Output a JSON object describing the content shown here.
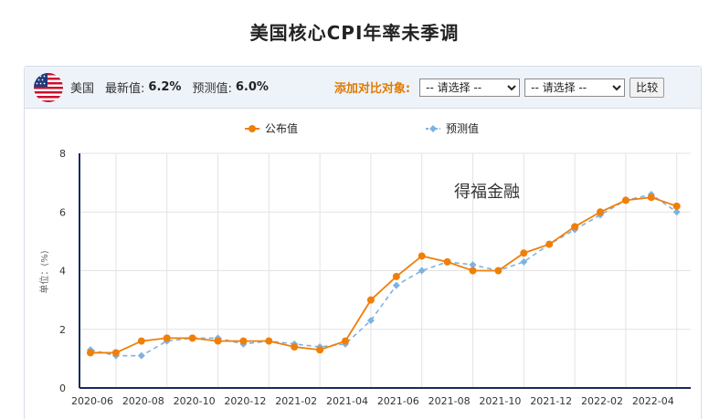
{
  "page": {
    "title": "美国核心CPI年率未季调"
  },
  "toolbar": {
    "country": "美国",
    "latest_label": "最新值:",
    "latest_value": "6.2%",
    "forecast_label": "预测值:",
    "forecast_value": "6.0%",
    "compare_label": "添加对比对象:",
    "select1_value": "-- 请选择 --",
    "select2_value": "-- 请选择 --",
    "compare_button": "比较"
  },
  "watermark": "得福金融",
  "colors": {
    "published": "#f07f09",
    "forecast": "#7fb2e0",
    "axis": "#1b2a5c",
    "grid": "#e3e3e3"
  },
  "chart_data": {
    "type": "line",
    "title": "美国核心CPI年率未季调",
    "xlabel": "",
    "ylabel": "单位：(%)",
    "ylim": [
      0,
      8
    ],
    "yticks": [
      "0",
      "2",
      "4",
      "6",
      "8"
    ],
    "grid": true,
    "legend": "top-center",
    "categories": [
      "2020-06",
      "2020-07",
      "2020-08",
      "2020-09",
      "2020-10",
      "2020-11",
      "2020-12",
      "2021-01",
      "2021-02",
      "2021-03",
      "2021-04",
      "2021-05",
      "2021-06",
      "2021-07",
      "2021-08",
      "2021-09",
      "2021-10",
      "2021-11",
      "2021-12",
      "2022-01",
      "2022-02",
      "2022-03",
      "2022-04",
      "2022-05"
    ],
    "xtick_labels": [
      "2020-06",
      "2020-08",
      "2020-10",
      "2020-12",
      "2021-02",
      "2021-04",
      "2021-06",
      "2021-08",
      "2021-10",
      "2021-12",
      "2022-02",
      "2022-04"
    ],
    "series": [
      {
        "name": "公布值",
        "style": "solid",
        "values": [
          1.2,
          1.2,
          1.6,
          1.7,
          1.7,
          1.6,
          1.6,
          1.6,
          1.4,
          1.3,
          1.6,
          3.0,
          3.8,
          4.5,
          4.3,
          4.0,
          4.0,
          4.6,
          4.9,
          5.5,
          6.0,
          6.4,
          6.5,
          6.2
        ]
      },
      {
        "name": "预测值",
        "style": "dashed",
        "values": [
          1.3,
          1.1,
          1.1,
          1.6,
          1.7,
          1.7,
          1.5,
          1.6,
          1.5,
          1.4,
          1.5,
          2.3,
          3.5,
          4.0,
          4.3,
          4.2,
          4.0,
          4.3,
          4.9,
          5.4,
          5.9,
          6.4,
          6.6,
          6.0
        ]
      }
    ]
  }
}
